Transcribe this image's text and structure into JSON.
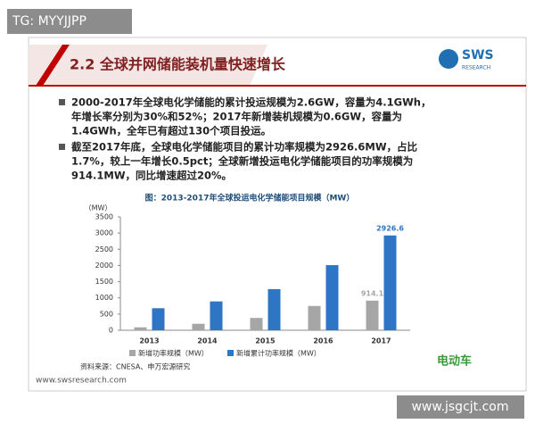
{
  "watermark_top": "TG: MYYJJPP",
  "watermark_bottom": "www.jsgcjt.com",
  "header": {
    "title": "2.2 全球并网储能装机量快速增长",
    "logo": "SWS",
    "logo_sub": "RESEARCH"
  },
  "bullets": [
    [
      "2000-2017年全球电化学储能的累计投运规模为2.6GW，容量为4.1GWh，",
      "年增长率分别为30%和52%；2017年新增装机规模为0.6GW，容量为",
      "1.4GWh，全年已有超过130个项目投运。"
    ],
    [
      "截至2017年底，全球电化学储能项目的累计功率规模为2926.6MW，占比",
      "1.7%，较上一年增长0.5pct；全球新增投运电化学储能项目的功率规模为",
      "914.1MW，同比增速超过20%。"
    ]
  ],
  "chart_data": {
    "type": "bar",
    "title": "图：2013-2017年全球投运电化学储能项目规模（MW）",
    "y_label": "（MW）",
    "categories": [
      "2013",
      "2014",
      "2015",
      "2016",
      "2017"
    ],
    "series": [
      {
        "name": "新增功率规模（MW）",
        "color": "#a6a6a6",
        "values": [
          90,
          200,
          380,
          750,
          914.1
        ]
      },
      {
        "name": "新增累计功率规模（MW）",
        "color": "#2e75c6",
        "values": [
          680,
          890,
          1270,
          2010,
          2926.6
        ]
      }
    ],
    "ylim": [
      0,
      3500
    ],
    "yticks": [
      0,
      500,
      1000,
      1500,
      2000,
      2500,
      3000,
      3500
    ],
    "source": "资料来源：CNESA、申万宏源研究"
  },
  "footer": "www.swsresearch.com",
  "corner_logo": "电动车"
}
